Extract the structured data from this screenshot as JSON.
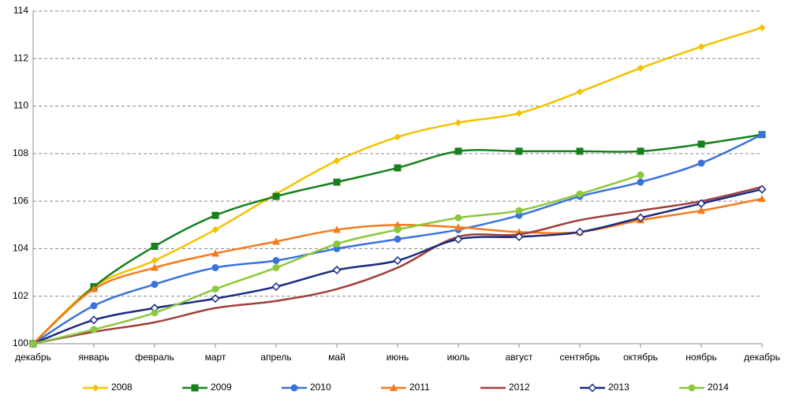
{
  "chart_data": {
    "type": "line",
    "categories": [
      "декабрь",
      "январь",
      "февраль",
      "март",
      "апрель",
      "май",
      "июнь",
      "июль",
      "август",
      "сентябрь",
      "октябрь",
      "ноябрь",
      "декабрь"
    ],
    "ylim": [
      100,
      114
    ],
    "yticks": [
      100,
      102,
      104,
      106,
      108,
      110,
      112,
      114
    ],
    "grid": true,
    "legend": "bottom",
    "series": [
      {
        "name": "2008",
        "color": "#f2c200",
        "marker": "diamond",
        "values": [
          100,
          102.4,
          103.5,
          104.8,
          106.3,
          107.7,
          108.7,
          109.3,
          109.7,
          110.6,
          111.6,
          112.5,
          113.3
        ]
      },
      {
        "name": "2009",
        "color": "#17801c",
        "marker": "square",
        "values": [
          100,
          102.4,
          104.1,
          105.4,
          106.2,
          106.8,
          107.4,
          108.1,
          108.1,
          108.1,
          108.1,
          108.4,
          108.8
        ]
      },
      {
        "name": "2010",
        "color": "#3a72dc",
        "marker": "circle",
        "values": [
          100,
          101.6,
          102.5,
          103.2,
          103.5,
          104.0,
          104.4,
          104.8,
          105.4,
          106.2,
          106.8,
          107.6,
          108.8
        ]
      },
      {
        "name": "2011",
        "color": "#f57a1a",
        "marker": "triangle",
        "values": [
          100,
          102.3,
          103.2,
          103.8,
          104.3,
          104.8,
          105.0,
          104.9,
          104.7,
          104.7,
          105.2,
          105.6,
          106.1
        ]
      },
      {
        "name": "2012",
        "color": "#a0403c",
        "marker": "none",
        "values": [
          100,
          100.5,
          100.9,
          101.5,
          101.8,
          102.3,
          103.2,
          104.5,
          104.6,
          105.2,
          105.6,
          106.0,
          106.6
        ]
      },
      {
        "name": "2013",
        "color": "#1a2a80",
        "marker": "open-diamond",
        "values": [
          100,
          101.0,
          101.5,
          101.9,
          102.4,
          103.1,
          103.5,
          104.4,
          104.5,
          104.7,
          105.3,
          105.9,
          106.5
        ]
      },
      {
        "name": "2014",
        "color": "#8cc83c",
        "marker": "circle",
        "values": [
          100,
          100.6,
          101.3,
          102.3,
          103.2,
          104.2,
          104.8,
          105.3,
          105.6,
          106.3,
          107.1,
          null,
          null
        ]
      }
    ]
  }
}
